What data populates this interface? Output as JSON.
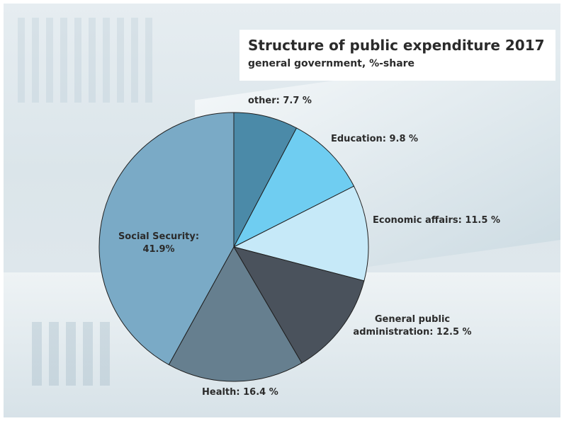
{
  "chart_data": {
    "type": "pie",
    "title": "Structure of public expenditure 2017",
    "subtitle": "general government,  %-share",
    "slices": [
      {
        "label": "other: 7.7 %",
        "value": 7.7,
        "color": "#4b8aa8"
      },
      {
        "label": "Education: 9.8 %",
        "value": 9.8,
        "color": "#6fcdf1"
      },
      {
        "label": "Economic affairs: 11.5 %",
        "value": 11.5,
        "color": "#c6e9f8"
      },
      {
        "label_lines": [
          "General public",
          "administration: 12.5 %"
        ],
        "value": 12.5,
        "color": "#4a525c"
      },
      {
        "label": "Health: 16.4 %",
        "value": 16.4,
        "color": "#667f8f"
      },
      {
        "label_lines": [
          "Social Security:",
          "41.9%"
        ],
        "value": 41.9,
        "color": "#7aaac6"
      }
    ]
  }
}
